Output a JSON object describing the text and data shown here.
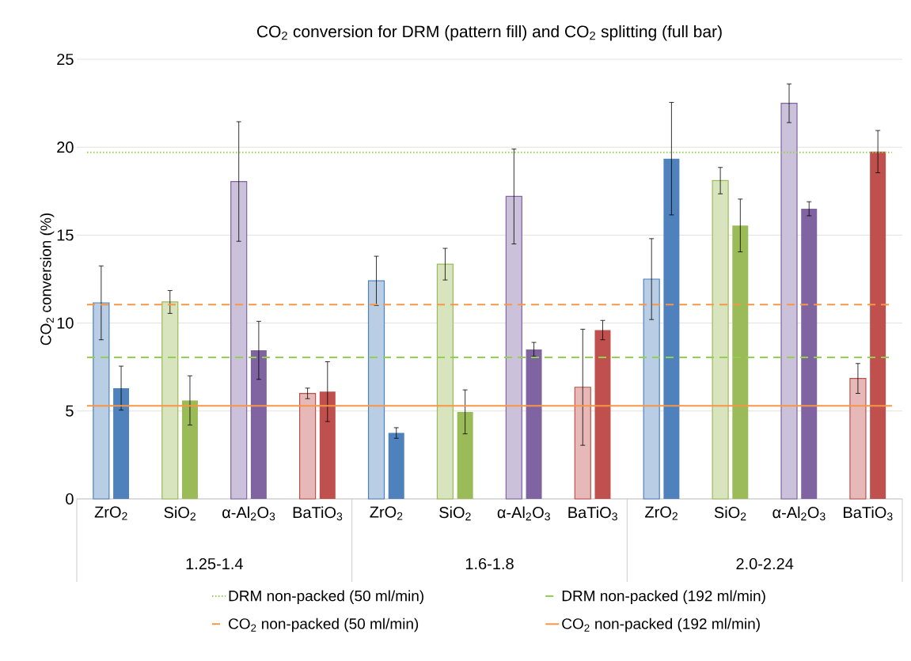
{
  "chart_data": {
    "type": "bar",
    "title": "CO$_{2}$ conversion for DRM (pattern fill) and CO$_{2}$ splitting (full bar)",
    "ylabel": "CO$_{2}$ conversion (%)",
    "categories": [
      "ZrO$_{2}$",
      "SiO$_{2}$",
      "α-Al$_{2}$O$_{3}$",
      "BaTiO$_{3}$",
      "ZrO$_{2}$",
      "SiO$_{2}$",
      "α-Al$_{2}$O$_{3}$",
      "BaTiO$_{3}$",
      "ZrO$_{2}$",
      "SiO$_{2}$",
      "α-Al$_{2}$O$_{3}$",
      "BaTiO$_{3}$"
    ],
    "annotations": [
      "1.25-1.4",
      "1.6-1.8",
      "2.0-2.24"
    ],
    "series": [
      {
        "colors": [
          "#4f81bd",
          "#9bbb59",
          "#8064a2",
          "#c0504d",
          "#4f81bd",
          "#9bbb59",
          "#8064a2",
          "#c0504d",
          "#4f81bd",
          "#9bbb59",
          "#8064a2",
          "#c0504d"
        ],
        "values": [
          11.15,
          11.2,
          18.05,
          6.0,
          12.4,
          13.35,
          17.2,
          6.35,
          12.5,
          18.1,
          22.5,
          6.85
        ],
        "errors": [
          2.1,
          0.65,
          3.4,
          0.3,
          1.4,
          0.9,
          2.7,
          3.3,
          2.3,
          0.75,
          1.1,
          0.85
        ]
      },
      {
        "colors": [
          "#4f81bd",
          "#9bbb59",
          "#8064a2",
          "#c0504d",
          "#4f81bd",
          "#9bbb59",
          "#8064a2",
          "#c0504d",
          "#4f81bd",
          "#9bbb59",
          "#8064a2",
          "#c0504d"
        ],
        "values": [
          6.3,
          5.6,
          8.45,
          6.1,
          3.75,
          4.95,
          8.5,
          9.6,
          19.35,
          15.55,
          16.5,
          19.75
        ],
        "errors": [
          1.25,
          1.4,
          1.65,
          1.7,
          0.3,
          1.25,
          0.4,
          0.55,
          3.2,
          1.5,
          0.4,
          1.2
        ]
      }
    ],
    "ref_lines": [
      {
        "axis": "y",
        "value": 19.7,
        "label": "DRM non-packed (50 ml/min)",
        "color": "#92d050",
        "line_style": "dotted"
      },
      {
        "axis": "y",
        "value": 8.05,
        "label": "DRM non-packed (192 ml/min)",
        "color": "#92d050",
        "line_style": "dashed"
      },
      {
        "axis": "y",
        "value": 11.05,
        "label": "CO$_{2}$ non-packed (50 ml/min)",
        "color": "#f79646",
        "line_style": "dashed"
      },
      {
        "axis": "y",
        "value": 5.3,
        "label": "CO$_{2}$ non-packed (192 ml/min)",
        "color": "#f79646",
        "line_style": "solid"
      }
    ],
    "ylim": [
      0,
      25
    ],
    "yticks": [
      0,
      5,
      10,
      15,
      20,
      25
    ],
    "grid": "y",
    "legend": "bottom"
  }
}
